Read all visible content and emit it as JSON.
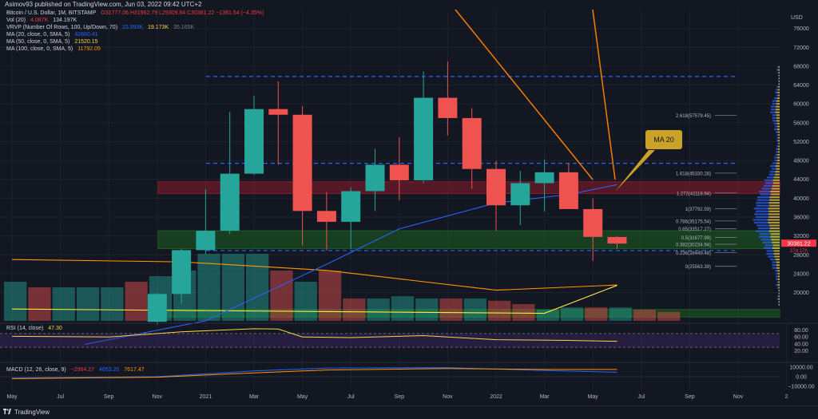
{
  "header": {
    "publish_line": "Asimov93 published on TradingView.com, Jun 03, 2022 09:42 UTC+2"
  },
  "legend": {
    "symbol": "Bitcoin / U.S. Dollar, 1M, BITSTAMP",
    "ohlc": "O31777.06  H31962.79  L29309.84  C30381.22  −1381.54 (−4.35%)",
    "vol_label": "Vol (20)",
    "vol_v1": "4.087K",
    "vol_v2": "134.197K",
    "vrvp_label": "VRVP (Number Of Rows, 100, Up/Down, 70)",
    "vrvp_v1": "15.993K",
    "vrvp_v2": "19.173K",
    "vrvp_v3": "35.165K",
    "ma20_label": "MA (20, close, 0, SMA, 5)",
    "ma20_value": "42880.41",
    "ma50_label": "MA (50, close, 0, SMA, 5)",
    "ma50_value": "21520.15",
    "ma100_label": "MA (100, close, 0, SMA, 5)",
    "ma100_value": "11792.05"
  },
  "chart_data": [
    {
      "type": "candlestick",
      "xlabel": "",
      "ylabel": "USD",
      "ylim": [
        14000,
        80000
      ],
      "x_ticks": [
        "May",
        "Jul",
        "Sep",
        "Nov",
        "2021",
        "Mar",
        "May",
        "Jul",
        "Sep",
        "Nov",
        "2022",
        "Mar",
        "May",
        "Jul",
        "Sep",
        "Nov",
        "2"
      ],
      "y_ticks": [
        20000,
        24000,
        28000,
        32000,
        36000,
        40000,
        44000,
        48000,
        52000,
        56000,
        60000,
        64000,
        68000,
        72000,
        76000
      ],
      "candles": [
        {
          "month": "2020-11",
          "o": 13800,
          "h": 19900,
          "l": 13200,
          "c": 19700
        },
        {
          "month": "2020-12",
          "o": 19700,
          "h": 29300,
          "l": 17600,
          "c": 29000
        },
        {
          "month": "2021-01",
          "o": 29000,
          "h": 41900,
          "l": 28100,
          "c": 33100
        },
        {
          "month": "2021-02",
          "o": 33100,
          "h": 58300,
          "l": 32400,
          "c": 45200
        },
        {
          "month": "2021-03",
          "o": 45200,
          "h": 61700,
          "l": 44900,
          "c": 58900
        },
        {
          "month": "2021-04",
          "o": 58900,
          "h": 64800,
          "l": 47100,
          "c": 57700
        },
        {
          "month": "2021-05",
          "o": 57700,
          "h": 59500,
          "l": 30000,
          "c": 37300
        },
        {
          "month": "2021-06",
          "o": 37300,
          "h": 41300,
          "l": 28900,
          "c": 35000
        },
        {
          "month": "2021-07",
          "o": 35000,
          "h": 42300,
          "l": 29300,
          "c": 41500
        },
        {
          "month": "2021-08",
          "o": 41500,
          "h": 50500,
          "l": 37300,
          "c": 47100
        },
        {
          "month": "2021-09",
          "o": 47100,
          "h": 52900,
          "l": 39600,
          "c": 43800
        },
        {
          "month": "2021-10",
          "o": 43800,
          "h": 66900,
          "l": 43200,
          "c": 61300
        },
        {
          "month": "2021-11",
          "o": 61300,
          "h": 69000,
          "l": 53300,
          "c": 57000
        },
        {
          "month": "2021-12",
          "o": 57000,
          "h": 59100,
          "l": 42000,
          "c": 46200
        },
        {
          "month": "2022-01",
          "o": 46200,
          "h": 47900,
          "l": 33100,
          "c": 38500
        },
        {
          "month": "2022-02",
          "o": 38500,
          "h": 45800,
          "l": 34300,
          "c": 43200
        },
        {
          "month": "2022-03",
          "o": 43200,
          "h": 48200,
          "l": 37200,
          "c": 45500
        },
        {
          "month": "2022-04",
          "o": 45500,
          "h": 47400,
          "l": 37700,
          "c": 37700
        },
        {
          "month": "2022-05",
          "o": 37700,
          "h": 40000,
          "l": 26700,
          "c": 31800
        },
        {
          "month": "2022-06",
          "o": 31777.06,
          "h": 31962.79,
          "l": 29309.84,
          "c": 30381.22
        }
      ],
      "fib_levels": [
        {
          "label": "2.618(57579.45)",
          "value": 57579.45
        },
        {
          "label": "1.618(45330.28)",
          "value": 45330.28
        },
        {
          "label": "1.272(41118.94)",
          "value": 41118.94
        },
        {
          "label": "1(37792.59)",
          "value": 37792.59
        },
        {
          "label": "0.786(35175.54)",
          "value": 35175.54
        },
        {
          "label": "0.65(33517.27)",
          "value": 33517.27
        },
        {
          "label": "0.5(31677.99)",
          "value": 31677.99
        },
        {
          "label": "0.382(30234.94)",
          "value": 30234.94
        },
        {
          "label": "0.236(28449.48)",
          "value": 28449.48
        },
        {
          "label": "0(25563.39)",
          "value": 25563.39
        }
      ],
      "zones": [
        {
          "name": "resistance",
          "from": 41000,
          "to": 43500,
          "color": "#8b1a2b"
        },
        {
          "name": "support",
          "from": 29300,
          "to": 33100,
          "color": "#1b5e20"
        },
        {
          "name": "lower-support",
          "from": 14800,
          "to": 16400,
          "color": "#1b5e20"
        }
      ],
      "dashed_levels": [
        {
          "value": 65800,
          "color": "#2962ff"
        },
        {
          "value": 47400,
          "color": "#2962ff"
        },
        {
          "value": 28900,
          "color": "#2962ff"
        }
      ],
      "annotation": "MA 20",
      "last_price": "30381.22",
      "last_price_time": "27d 17h"
    },
    {
      "type": "line",
      "name": "RSI (14, close)",
      "value": "47.30",
      "y_ticks": [
        20.0,
        40.0,
        60.0,
        80.0
      ],
      "ylim": [
        0,
        100
      ],
      "band": [
        30,
        70
      ]
    },
    {
      "type": "line",
      "name": "MACD (12, 26, close, 9)",
      "v1": "−2964.27",
      "v2": "4653.20",
      "v3": "7617.47",
      "y_ticks": [
        "10000.00",
        "0.00",
        "−10000.00"
      ]
    }
  ],
  "footer": {
    "brand": "TradingView"
  },
  "colors": {
    "bull": "#26a69a",
    "bear": "#ef5350",
    "ma20": "#2962ff",
    "ma50": "#ffeb3b",
    "ma100": "#ff9800",
    "trendline": "#f57c00"
  }
}
